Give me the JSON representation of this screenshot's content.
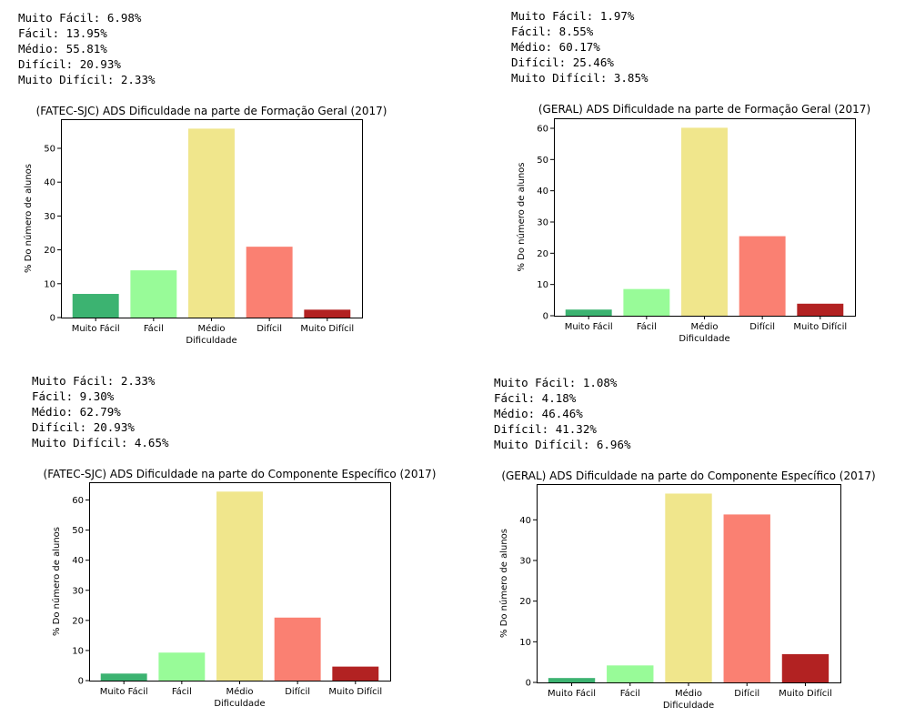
{
  "chart_data": [
    {
      "type": "bar",
      "title": "(FATEC-SJC) ADS Dificuldade na parte de Formação Geral (2017)",
      "xlabel": "Dificuldade",
      "ylabel": "% Do número de alunos",
      "categories": [
        "Muito Fácil",
        "Fácil",
        "Médio",
        "Difícil",
        "Muito Difícil"
      ],
      "values": [
        6.98,
        13.95,
        55.81,
        20.93,
        2.33
      ],
      "colors": [
        "#3cb371",
        "#98fb98",
        "#f0e68c",
        "#fa8072",
        "#b22222"
      ],
      "ylim": [
        0,
        58.6
      ],
      "yticks": [
        0,
        10,
        20,
        30,
        40,
        50
      ],
      "stats_lines": [
        "Muito Fácil: 6.98%",
        "Fácil: 13.95%",
        "Médio: 55.81%",
        "Difícil: 20.93%",
        "Muito Difícil: 2.33%"
      ]
    },
    {
      "type": "bar",
      "title": "(GERAL) ADS Dificuldade na parte de Formação Geral (2017)",
      "xlabel": "Dificuldade",
      "ylabel": "% Do número de alunos",
      "categories": [
        "Muito Fácil",
        "Fácil",
        "Médio",
        "Difícil",
        "Muito Difícil"
      ],
      "values": [
        1.97,
        8.55,
        60.17,
        25.46,
        3.85
      ],
      "colors": [
        "#3cb371",
        "#98fb98",
        "#f0e68c",
        "#fa8072",
        "#b22222"
      ],
      "ylim": [
        0,
        63.2
      ],
      "yticks": [
        0,
        10,
        20,
        30,
        40,
        50,
        60
      ],
      "stats_lines": [
        "Muito Fácil: 1.97%",
        "Fácil: 8.55%",
        "Médio: 60.17%",
        "Difícil: 25.46%",
        "Muito Difícil: 3.85%"
      ]
    },
    {
      "type": "bar",
      "title": "(FATEC-SJC) ADS Dificuldade na parte do Componente Específico (2017)",
      "xlabel": "Dificuldade",
      "ylabel": "% Do número de alunos",
      "categories": [
        "Muito Fácil",
        "Fácil",
        "Médio",
        "Difícil",
        "Muito Difícil"
      ],
      "values": [
        2.33,
        9.3,
        62.79,
        20.93,
        4.65
      ],
      "colors": [
        "#3cb371",
        "#98fb98",
        "#f0e68c",
        "#fa8072",
        "#b22222"
      ],
      "ylim": [
        0,
        65.9
      ],
      "yticks": [
        0,
        10,
        20,
        30,
        40,
        50,
        60
      ],
      "stats_lines": [
        "Muito Fácil: 2.33%",
        "Fácil: 9.30%",
        "Médio: 62.79%",
        "Difícil: 20.93%",
        "Muito Difícil: 4.65%"
      ]
    },
    {
      "type": "bar",
      "title": "(GERAL) ADS Dificuldade na parte do Componente Específico (2017)",
      "xlabel": "Dificuldade",
      "ylabel": "% Do número de alunos",
      "categories": [
        "Muito Fácil",
        "Fácil",
        "Médio",
        "Difícil",
        "Muito Difícil"
      ],
      "values": [
        1.08,
        4.18,
        46.46,
        41.32,
        6.96
      ],
      "colors": [
        "#3cb371",
        "#98fb98",
        "#f0e68c",
        "#fa8072",
        "#b22222"
      ],
      "ylim": [
        0,
        48.8
      ],
      "yticks": [
        0,
        10,
        20,
        30,
        40
      ],
      "stats_lines": [
        "Muito Fácil: 1.08%",
        "Fácil: 4.18%",
        "Médio: 46.46%",
        "Difícil: 41.32%",
        "Muito Difícil: 6.96%"
      ]
    }
  ]
}
